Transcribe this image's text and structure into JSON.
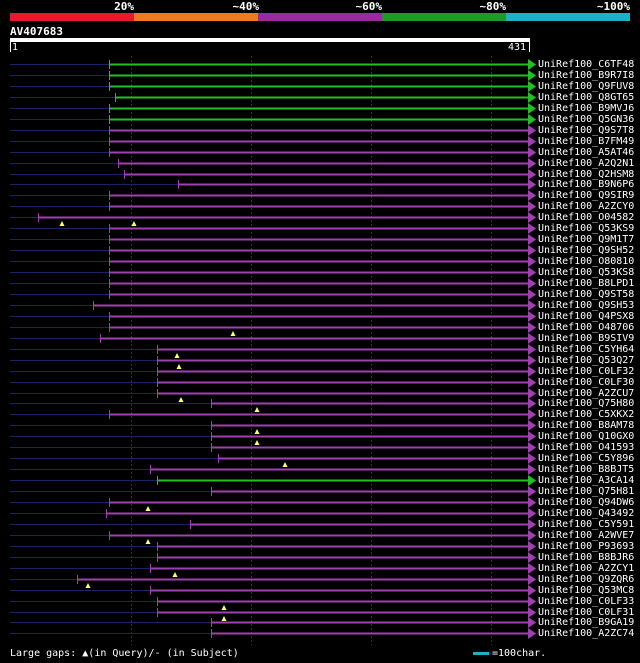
{
  "header": {
    "identity_labels": [
      "20%",
      "~40%",
      "~60%",
      "~80%",
      "~100%"
    ],
    "color_bands": [
      "#e8192c",
      "#ef7a20",
      "#9a2aa0",
      "#1c9a2a",
      "#1ab2c4"
    ],
    "query_name": "AV407683",
    "ruler_start": "1",
    "ruler_end": "431",
    "query_length": 431
  },
  "colors": {
    "green": "#22c022",
    "purple": "#a040b0",
    "navy": "#1a2460",
    "guide": "#333333",
    "gap": "#ffff66"
  },
  "hits": [
    {
      "name": "UniRef100_C6TF48",
      "start": 109,
      "end": 536,
      "color": "green",
      "qstart": 110,
      "qend": 431,
      "gaps": []
    },
    {
      "name": "UniRef100_B9R7I8",
      "start": 109,
      "end": 545,
      "color": "green",
      "qstart": 110,
      "qend": 431,
      "gaps": []
    },
    {
      "name": "UniRef100_Q9FUV8",
      "start": 109,
      "end": 540,
      "color": "green",
      "qstart": 110,
      "qend": 431,
      "gaps": []
    },
    {
      "name": "UniRef100_Q8GT65",
      "start": 115,
      "end": 545,
      "color": "green",
      "qstart": 110,
      "qend": 431,
      "gaps": []
    },
    {
      "name": "UniRef100_B9MVJ6",
      "start": 109,
      "end": 536,
      "color": "green",
      "qstart": 110,
      "qend": 431,
      "gaps": []
    },
    {
      "name": "UniRef100_Q5GN36",
      "start": 109,
      "end": 536,
      "color": "green",
      "qstart": 110,
      "qend": 431,
      "gaps": []
    },
    {
      "name": "UniRef100_Q9S7T8",
      "start": 109,
      "end": 536,
      "color": "purple",
      "qstart": 110,
      "qend": 431,
      "gaps": []
    },
    {
      "name": "UniRef100_B7FM49",
      "start": 109,
      "end": 536,
      "color": "purple",
      "qstart": 110,
      "qend": 431,
      "gaps": []
    },
    {
      "name": "UniRef100_A5AT46",
      "start": 109,
      "end": 536,
      "color": "purple",
      "qstart": 110,
      "qend": 431,
      "gaps": []
    },
    {
      "name": "UniRef100_A2Q2N1",
      "start": 118,
      "end": 536,
      "color": "purple",
      "qstart": 110,
      "qend": 431,
      "gaps": []
    },
    {
      "name": "UniRef100_Q2HSM8",
      "start": 124,
      "end": 536,
      "color": "purple",
      "qstart": 110,
      "qend": 431,
      "gaps": []
    },
    {
      "name": "UniRef100_B9N6P6",
      "start": 178,
      "end": 536,
      "color": "purple",
      "qstart": 110,
      "qend": 431,
      "gaps": []
    },
    {
      "name": "UniRef100_Q9SIR9",
      "start": 109,
      "end": 536,
      "color": "purple",
      "qstart": 110,
      "qend": 431,
      "gaps": []
    },
    {
      "name": "UniRef100_A2ZCY0",
      "start": 109,
      "end": 536,
      "color": "purple",
      "qstart": 110,
      "qend": 431,
      "gaps": []
    },
    {
      "name": "UniRef100_O04582",
      "start": 38,
      "end": 536,
      "color": "purple",
      "qstart": 110,
      "qend": 431,
      "gaps": [
        62,
        134
      ]
    },
    {
      "name": "UniRef100_Q53KS9",
      "start": 109,
      "end": 536,
      "color": "purple",
      "qstart": 110,
      "qend": 431,
      "gaps": []
    },
    {
      "name": "UniRef100_Q9M1T7",
      "start": 109,
      "end": 536,
      "color": "purple",
      "qstart": 110,
      "qend": 431,
      "gaps": []
    },
    {
      "name": "UniRef100_Q9SH52",
      "start": 109,
      "end": 536,
      "color": "purple",
      "qstart": 110,
      "qend": 431,
      "gaps": []
    },
    {
      "name": "UniRef100_O80810",
      "start": 109,
      "end": 536,
      "color": "purple",
      "qstart": 110,
      "qend": 431,
      "gaps": []
    },
    {
      "name": "UniRef100_Q53KS8",
      "start": 109,
      "end": 536,
      "color": "purple",
      "qstart": 110,
      "qend": 431,
      "gaps": []
    },
    {
      "name": "UniRef100_B8LPD1",
      "start": 109,
      "end": 536,
      "color": "purple",
      "qstart": 110,
      "qend": 431,
      "gaps": []
    },
    {
      "name": "UniRef100_Q9ST58",
      "start": 109,
      "end": 536,
      "color": "purple",
      "qstart": 110,
      "qend": 431,
      "gaps": []
    },
    {
      "name": "UniRef100_Q9SH53",
      "start": 93,
      "end": 536,
      "color": "purple",
      "qstart": 110,
      "qend": 431,
      "gaps": []
    },
    {
      "name": "UniRef100_Q4PSX8",
      "start": 109,
      "end": 536,
      "color": "purple",
      "qstart": 110,
      "qend": 431,
      "gaps": []
    },
    {
      "name": "UniRef100_O48706",
      "start": 109,
      "end": 536,
      "color": "purple",
      "qstart": 110,
      "qend": 431,
      "gaps": [
        233
      ]
    },
    {
      "name": "UniRef100_B9SIV9",
      "start": 100,
      "end": 536,
      "color": "purple",
      "qstart": 110,
      "qend": 431,
      "gaps": []
    },
    {
      "name": "UniRef100_C5YH64",
      "start": 157,
      "end": 536,
      "color": "purple",
      "qstart": 110,
      "qend": 431,
      "gaps": [
        177
      ]
    },
    {
      "name": "UniRef100_Q53Q27",
      "start": 157,
      "end": 536,
      "color": "purple",
      "qstart": 110,
      "qend": 431,
      "gaps": [
        179
      ]
    },
    {
      "name": "UniRef100_C0LF32",
      "start": 157,
      "end": 536,
      "color": "purple",
      "qstart": 110,
      "qend": 431,
      "gaps": []
    },
    {
      "name": "UniRef100_C0LF30",
      "start": 157,
      "end": 536,
      "color": "purple",
      "qstart": 110,
      "qend": 431,
      "gaps": []
    },
    {
      "name": "UniRef100_A2ZCU7",
      "start": 157,
      "end": 536,
      "color": "purple",
      "qstart": 110,
      "qend": 431,
      "gaps": [
        181
      ]
    },
    {
      "name": "UniRef100_Q75H80",
      "start": 211,
      "end": 536,
      "color": "purple",
      "qstart": 110,
      "qend": 431,
      "gaps": [
        257
      ]
    },
    {
      "name": "UniRef100_C5XKX2",
      "start": 109,
      "end": 536,
      "color": "purple",
      "qstart": 110,
      "qend": 431,
      "gaps": []
    },
    {
      "name": "UniRef100_B8AM78",
      "start": 211,
      "end": 536,
      "color": "purple",
      "qstart": 110,
      "qend": 431,
      "gaps": [
        257
      ]
    },
    {
      "name": "UniRef100_Q10GX0",
      "start": 211,
      "end": 536,
      "color": "purple",
      "qstart": 110,
      "qend": 431,
      "gaps": [
        257
      ]
    },
    {
      "name": "UniRef100_O41593",
      "start": 211,
      "end": 536,
      "color": "purple",
      "qstart": 110,
      "qend": 431,
      "gaps": []
    },
    {
      "name": "UniRef100_C5Y896",
      "start": 218,
      "end": 536,
      "color": "purple",
      "qstart": 110,
      "qend": 431,
      "gaps": [
        285
      ]
    },
    {
      "name": "UniRef100_B8BJT5",
      "start": 150,
      "end": 536,
      "color": "purple",
      "qstart": 110,
      "qend": 431,
      "gaps": []
    },
    {
      "name": "UniRef100_A3CA14",
      "start": 157,
      "end": 536,
      "color": "green",
      "qstart": 110,
      "qend": 330,
      "gaps": []
    },
    {
      "name": "UniRef100_Q75H81",
      "start": 211,
      "end": 536,
      "color": "purple",
      "qstart": 110,
      "qend": 431,
      "gaps": []
    },
    {
      "name": "UniRef100_Q94DW6",
      "start": 109,
      "end": 536,
      "color": "purple",
      "qstart": 110,
      "qend": 431,
      "gaps": [
        148
      ]
    },
    {
      "name": "UniRef100_Q43492",
      "start": 106,
      "end": 536,
      "color": "purple",
      "qstart": 110,
      "qend": 431,
      "gaps": []
    },
    {
      "name": "UniRef100_C5Y591",
      "start": 190,
      "end": 536,
      "color": "purple",
      "qstart": 110,
      "qend": 431,
      "gaps": []
    },
    {
      "name": "UniRef100_A2WVE7",
      "start": 109,
      "end": 536,
      "color": "purple",
      "qstart": 110,
      "qend": 431,
      "gaps": [
        148
      ]
    },
    {
      "name": "UniRef100_P93693",
      "start": 157,
      "end": 536,
      "color": "purple",
      "qstart": 110,
      "qend": 431,
      "gaps": []
    },
    {
      "name": "UniRef100_B8BJR6",
      "start": 157,
      "end": 536,
      "color": "purple",
      "qstart": 110,
      "qend": 431,
      "gaps": []
    },
    {
      "name": "UniRef100_A2ZCY1",
      "start": 150,
      "end": 536,
      "color": "purple",
      "qstart": 110,
      "qend": 431,
      "gaps": [
        175
      ]
    },
    {
      "name": "UniRef100_Q9ZQR6",
      "start": 77,
      "end": 536,
      "color": "purple",
      "qstart": 110,
      "qend": 431,
      "gaps": [
        88
      ]
    },
    {
      "name": "UniRef100_Q53MC8",
      "start": 150,
      "end": 536,
      "color": "purple",
      "qstart": 110,
      "qend": 431,
      "gaps": []
    },
    {
      "name": "UniRef100_C0LF33",
      "start": 157,
      "end": 536,
      "color": "purple",
      "qstart": 110,
      "qend": 431,
      "gaps": [
        224
      ]
    },
    {
      "name": "UniRef100_C0LF31",
      "start": 157,
      "end": 536,
      "color": "purple",
      "qstart": 110,
      "qend": 431,
      "gaps": [
        224
      ]
    },
    {
      "name": "UniRef100_B9GA19",
      "start": 211,
      "end": 536,
      "color": "purple",
      "qstart": 110,
      "qend": 431,
      "gaps": []
    },
    {
      "name": "UniRef100_A2ZC74",
      "start": 211,
      "end": 536,
      "color": "purple",
      "qstart": 110,
      "qend": 431,
      "gaps": []
    }
  ],
  "footer": {
    "large_gaps_label": "Large gaps:",
    "in_query_label": "(in Query)/",
    "in_subject_label": "- (in Subject)",
    "scale_label": "=100char.",
    "scale_chars": 100
  }
}
